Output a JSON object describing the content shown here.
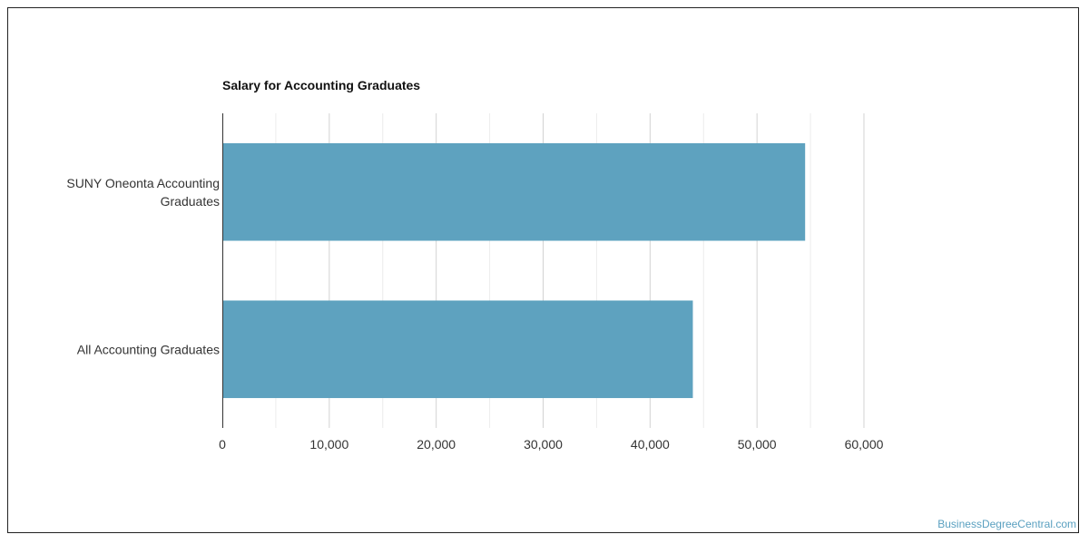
{
  "chart_data": {
    "type": "bar",
    "orientation": "horizontal",
    "title": "Salary for Accounting Graduates",
    "categories": [
      [
        "SUNY Oneonta Accounting",
        "Graduates"
      ],
      [
        "All Accounting Graduates"
      ]
    ],
    "values": [
      54500,
      44000
    ],
    "xlim": [
      0,
      60000
    ],
    "ticks": [
      0,
      10000,
      20000,
      30000,
      40000,
      50000,
      60000
    ],
    "tick_labels": [
      "0",
      "10,000",
      "20,000",
      "30,000",
      "40,000",
      "50,000",
      "60,000"
    ],
    "bar_color": "#5ea2bf",
    "grid": true,
    "xlabel": "",
    "ylabel": ""
  },
  "watermark": "BusinessDegreeCentral.com"
}
